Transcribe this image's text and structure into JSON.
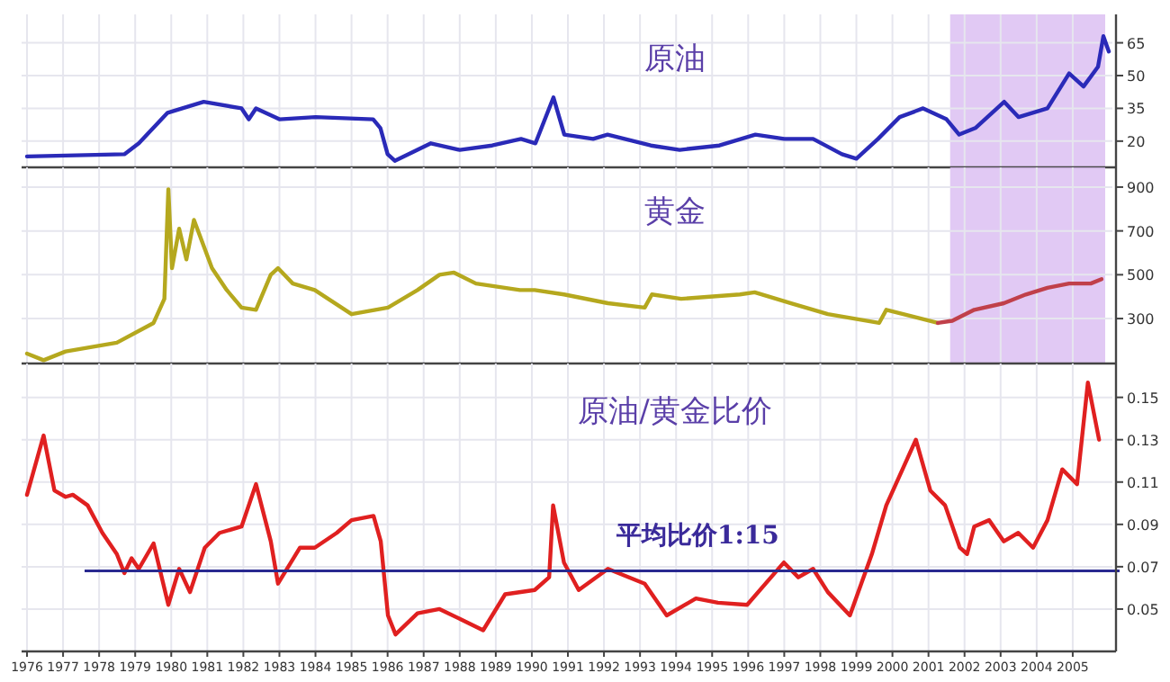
{
  "chart_data": [
    {
      "type": "line",
      "title": "原油",
      "xlim": [
        1975.85,
        2006.1
      ],
      "ylim": [
        8,
        78
      ],
      "yticks": [
        20,
        35,
        50,
        65
      ],
      "tick_labels": "y",
      "grid": true,
      "bands": [
        {
          "axis": "x",
          "from": 2001.6,
          "to": 2005.9,
          "color": "#dcc0f2"
        }
      ],
      "series": [
        {
          "color": "#2a2ab8",
          "x": [
            1976.0,
            1978.7,
            1979.1,
            1979.9,
            1980.9,
            1981.95,
            1982.15,
            1982.35,
            1983.0,
            1984.0,
            1985.6,
            1985.8,
            1986.0,
            1986.2,
            1987.2,
            1988.0,
            1988.9,
            1989.7,
            1990.1,
            1990.6,
            1990.9,
            1991.7,
            1992.1,
            1993.3,
            1994.1,
            1995.2,
            1996.2,
            1997.0,
            1997.8,
            1998.6,
            1999.0,
            1999.6,
            2000.2,
            2000.85,
            2001.5,
            2001.85,
            2002.3,
            2003.1,
            2003.5,
            2004.3,
            2004.9,
            2005.3,
            2005.7,
            2005.85,
            2006.0
          ],
          "values": [
            13,
            14,
            19,
            33,
            38,
            35,
            30,
            35,
            30,
            31,
            30,
            26,
            14,
            11,
            19,
            16,
            18,
            21,
            19,
            40,
            23,
            21,
            23,
            18,
            16,
            18,
            23,
            21,
            21,
            14,
            12,
            21,
            31,
            35,
            30,
            23,
            26,
            38,
            31,
            35,
            51,
            45,
            54,
            68,
            61
          ]
        }
      ]
    },
    {
      "type": "line",
      "title": "黄金",
      "xlim": [
        1975.85,
        2006.1
      ],
      "ylim": [
        95,
        990
      ],
      "yticks": [
        300,
        500,
        700,
        900
      ],
      "tick_labels": "y",
      "grid": true,
      "bands": [
        {
          "axis": "x",
          "from": 2001.6,
          "to": 2005.9,
          "color": "#dcc0f2"
        }
      ],
      "series": [
        {
          "color": "#b5a81e",
          "x": [
            1976.0,
            1976.46,
            1977.07,
            1978.49,
            1979.51,
            1979.81,
            1979.92,
            1980.02,
            1980.22,
            1980.42,
            1980.63,
            1981.13,
            1981.54,
            1981.95,
            1982.35,
            1982.76,
            1982.96,
            1983.37,
            1983.98,
            1985.0,
            1986.01,
            1986.83,
            1987.44,
            1987.84,
            1988.45,
            1989.67,
            1990.08,
            1990.89,
            1992.11,
            1993.13,
            1993.33,
            1994.14,
            1995.77,
            1996.18,
            1997.19,
            1998.21,
            1999.63,
            1999.83,
            2001.26
          ],
          "values": [
            140,
            110,
            150,
            190,
            280,
            390,
            890,
            530,
            710,
            570,
            750,
            530,
            430,
            350,
            340,
            500,
            530,
            460,
            430,
            320,
            350,
            430,
            500,
            510,
            460,
            430,
            430,
            410,
            370,
            350,
            410,
            390,
            410,
            420,
            370,
            320,
            280,
            340,
            280
          ]
        },
        {
          "color": "#c0404a",
          "x": [
            2001.26,
            2001.66,
            2002.27,
            2003.09,
            2003.7,
            2004.3,
            2004.9,
            2005.5,
            2005.8
          ],
          "values": [
            280,
            290,
            340,
            370,
            410,
            440,
            460,
            460,
            480
          ]
        }
      ]
    },
    {
      "type": "line",
      "title": "原油/黄金比价",
      "xlim": [
        1975.85,
        2006.1
      ],
      "ylim": [
        0.03,
        0.166
      ],
      "yticks": [
        0.05,
        0.07,
        0.09,
        0.11,
        0.13,
        0.15
      ],
      "grid": true,
      "xticks": [
        1976,
        1977,
        1978,
        1979,
        1980,
        1981,
        1982,
        1983,
        1984,
        1985,
        1986,
        1987,
        1988,
        1989,
        1990,
        1991,
        1992,
        1993,
        1994,
        1995,
        1996,
        1997,
        1998,
        1999,
        2000,
        2001,
        2002,
        2003,
        2004,
        2005
      ],
      "ref_lines": [
        {
          "axis": "y",
          "value": 0.068,
          "color": "#2a2a90"
        }
      ],
      "annotations": [
        "平均比价1:15"
      ],
      "series": [
        {
          "color": "#e02020",
          "x": [
            1976.0,
            1976.46,
            1976.76,
            1977.07,
            1977.27,
            1977.68,
            1978.09,
            1978.49,
            1978.7,
            1978.9,
            1979.1,
            1979.51,
            1979.92,
            1980.22,
            1980.52,
            1980.93,
            1981.34,
            1981.95,
            1982.35,
            1982.76,
            1982.96,
            1983.57,
            1983.98,
            1984.59,
            1985.0,
            1985.61,
            1985.81,
            1986.01,
            1986.22,
            1986.83,
            1987.44,
            1988.05,
            1988.65,
            1989.26,
            1990.08,
            1990.48,
            1990.59,
            1990.89,
            1991.3,
            1992.11,
            1993.13,
            1993.74,
            1994.55,
            1995.16,
            1995.97,
            1996.99,
            1997.39,
            1997.8,
            1998.21,
            1998.82,
            1999.43,
            1999.83,
            2000.65,
            2001.05,
            2001.46,
            2001.87,
            2002.07,
            2002.27,
            2002.68,
            2003.09,
            2003.49,
            2003.9,
            2004.3,
            2004.71,
            2005.12,
            2005.42,
            2005.73
          ],
          "values": [
            0.104,
            0.132,
            0.106,
            0.103,
            0.104,
            0.099,
            0.086,
            0.076,
            0.067,
            0.074,
            0.069,
            0.081,
            0.052,
            0.069,
            0.058,
            0.079,
            0.086,
            0.089,
            0.109,
            0.082,
            0.062,
            0.079,
            0.079,
            0.086,
            0.092,
            0.094,
            0.082,
            0.047,
            0.038,
            0.048,
            0.05,
            0.045,
            0.04,
            0.057,
            0.059,
            0.065,
            0.099,
            0.072,
            0.059,
            0.069,
            0.062,
            0.047,
            0.055,
            0.053,
            0.052,
            0.072,
            0.065,
            0.069,
            0.058,
            0.047,
            0.076,
            0.099,
            0.13,
            0.106,
            0.099,
            0.079,
            0.076,
            0.089,
            0.092,
            0.082,
            0.086,
            0.079,
            0.092,
            0.116,
            0.109,
            0.157,
            0.13
          ]
        }
      ]
    }
  ]
}
